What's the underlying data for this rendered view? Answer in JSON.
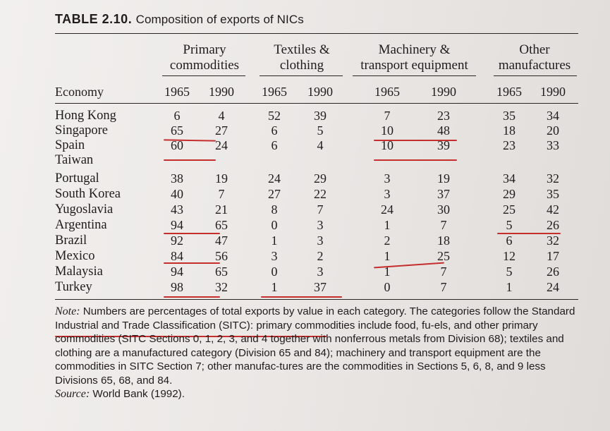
{
  "table": {
    "title_number": "TABLE 2.10.",
    "title_text": "Composition of exports of NICs",
    "groups": [
      {
        "line1": "Primary",
        "line2": "commodities"
      },
      {
        "line1": "Textiles &",
        "line2": "clothing"
      },
      {
        "line1": "Machinery &",
        "line2": "transport equipment"
      },
      {
        "line1": "Other",
        "line2": "manufactures"
      }
    ],
    "economy_header": "Economy",
    "years": [
      "1965",
      "1990",
      "1965",
      "1990",
      "1965",
      "1990",
      "1965",
      "1990"
    ],
    "rows": [
      {
        "name": "Hong Kong",
        "values": [
          "6",
          "4",
          "52",
          "39",
          "7",
          "23",
          "35",
          "34"
        ]
      },
      {
        "name": "Singapore",
        "values": [
          "65",
          "27",
          "6",
          "5",
          "10",
          "48",
          "18",
          "20"
        ]
      },
      {
        "name": "Spain",
        "values": [
          "60",
          "24",
          "6",
          "4",
          "10",
          "39",
          "23",
          "33"
        ]
      },
      {
        "name": "Taiwan",
        "values": [
          "",
          "",
          "",
          "",
          "",
          "",
          "",
          ""
        ]
      },
      {
        "name": "Portugal",
        "values": [
          "38",
          "19",
          "24",
          "29",
          "3",
          "19",
          "34",
          "32"
        ]
      },
      {
        "name": "South Korea",
        "values": [
          "40",
          "7",
          "27",
          "22",
          "3",
          "37",
          "29",
          "35"
        ]
      },
      {
        "name": "Yugoslavia",
        "values": [
          "43",
          "21",
          "8",
          "7",
          "24",
          "30",
          "25",
          "42"
        ]
      },
      {
        "name": "Argentina",
        "values": [
          "94",
          "65",
          "0",
          "3",
          "1",
          "7",
          "5",
          "26"
        ]
      },
      {
        "name": "Brazil",
        "values": [
          "92",
          "47",
          "1",
          "3",
          "2",
          "18",
          "6",
          "32"
        ]
      },
      {
        "name": "Mexico",
        "values": [
          "84",
          "56",
          "3",
          "2",
          "1",
          "25",
          "12",
          "17"
        ]
      },
      {
        "name": "Malaysia",
        "values": [
          "94",
          "65",
          "0",
          "3",
          "1",
          "7",
          "5",
          "26"
        ]
      },
      {
        "name": "Turkey",
        "values": [
          "98",
          "32",
          "1",
          "37",
          "0",
          "7",
          "1",
          "24"
        ]
      }
    ],
    "note_label": "Note:",
    "note_part1": " Numbers are percentages of total exports by value in each category. The categories follow the ",
    "note_sitc": "Standard Industrial and Trade Classification (SITC)",
    "note_part2": ": primary commodities include food, fu-els, and other primary commodities (SITC Sections 0, 1, 2, 3, and 4 together with nonferrous metals from Division 68); textiles and clothing are a manufactured category (Division 65 and 84); machinery and transport equipment are the commodities in SITC Section 7; other manufac-tures are the commodities in Sections 5, 6, 8, and 9 less Divisions 65, 68, and 84.",
    "source_label": "Source:",
    "source_text": " World Bank (1992)."
  },
  "colors": {
    "annotation_underline": "#c62d2d"
  }
}
